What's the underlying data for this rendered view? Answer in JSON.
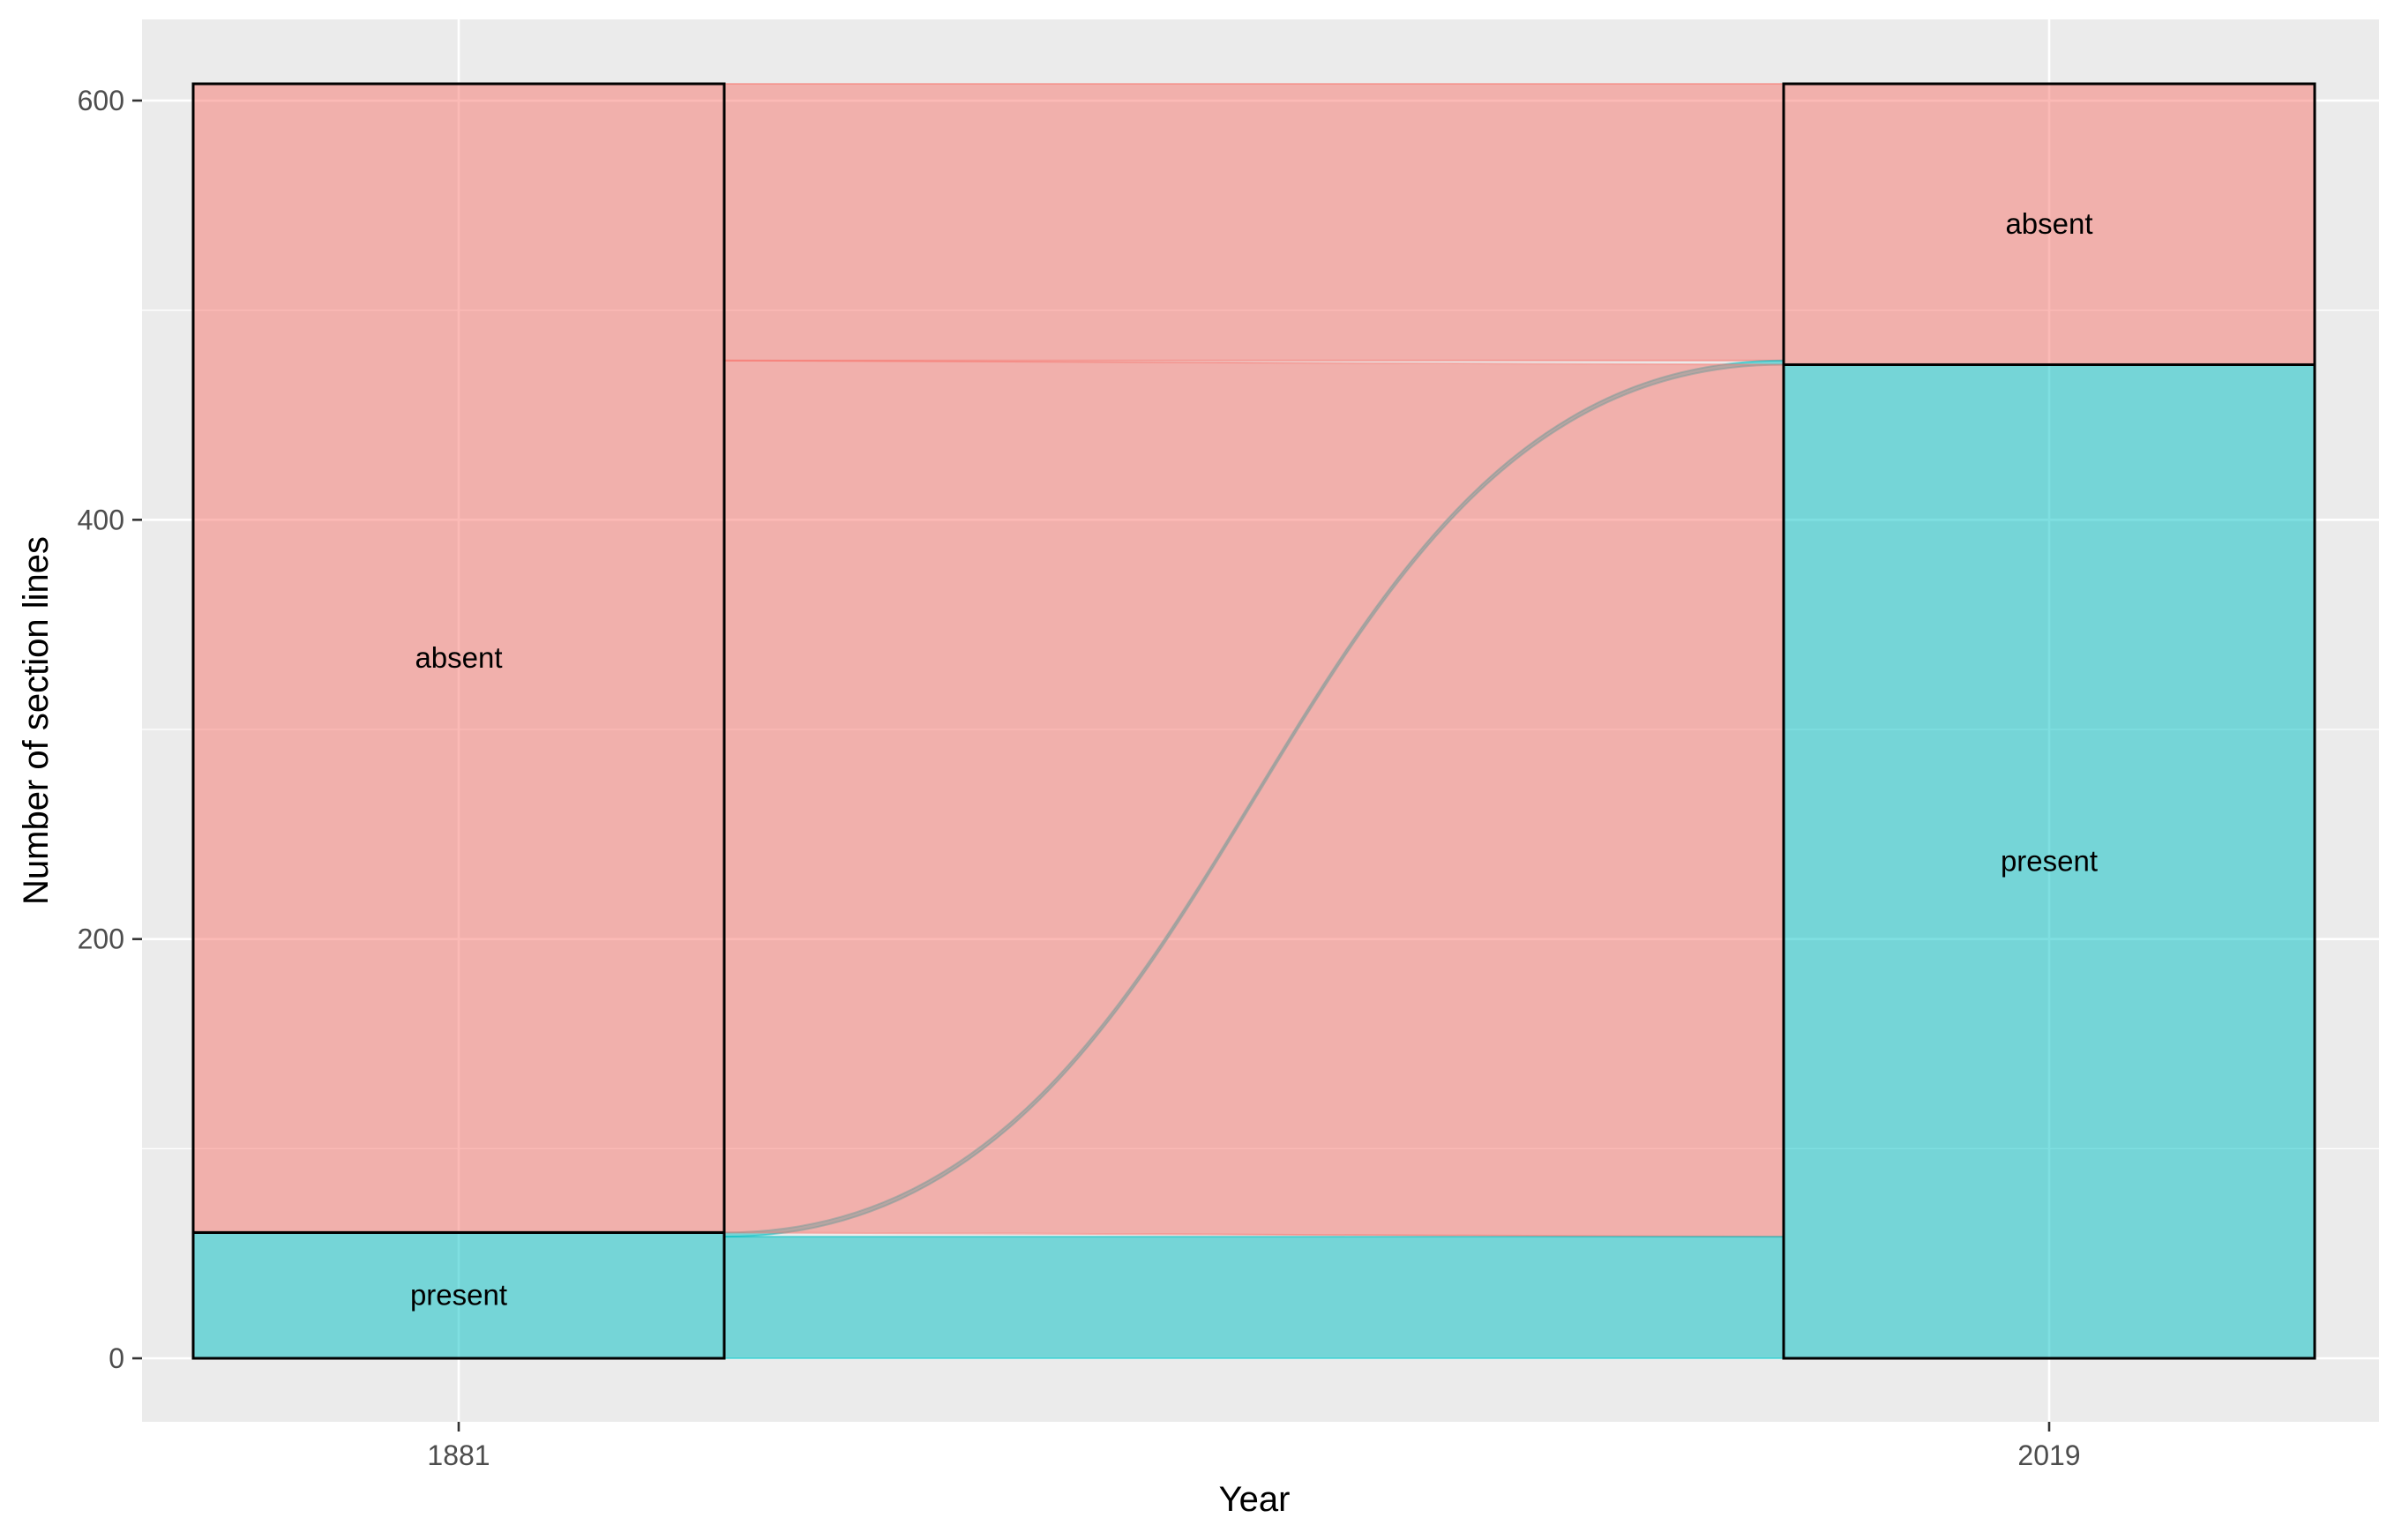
{
  "chart_data": {
    "type": "alluvial",
    "title": "",
    "xlabel": "Year",
    "ylabel": "Number of section lines",
    "categories": [
      "1881",
      "2019"
    ],
    "ylim": [
      -70,
      640
    ],
    "yticks": [
      0,
      200,
      400,
      600
    ],
    "grid": true,
    "legend": "none",
    "colors": {
      "absent": "#F8766D",
      "present": "#00BFC4",
      "panel": "#EBEBEB",
      "grid": "#FFFFFF"
    },
    "strata": [
      {
        "year": "1881",
        "name": "absent",
        "label": "absent",
        "value": 548
      },
      {
        "year": "1881",
        "name": "present",
        "label": "present",
        "value": 60
      },
      {
        "year": "2019",
        "name": "absent",
        "label": "absent",
        "value": 134
      },
      {
        "year": "2019",
        "name": "present",
        "label": "present",
        "value": 474
      }
    ],
    "flows": [
      {
        "from": "present",
        "to": "present",
        "value": 58,
        "color_group": "present"
      },
      {
        "from": "present",
        "to": "absent",
        "value": 2,
        "color_group": "present"
      },
      {
        "from": "absent",
        "to": "present",
        "value": 416,
        "color_group": "absent"
      },
      {
        "from": "absent",
        "to": "absent",
        "value": 132,
        "color_group": "absent"
      }
    ]
  }
}
